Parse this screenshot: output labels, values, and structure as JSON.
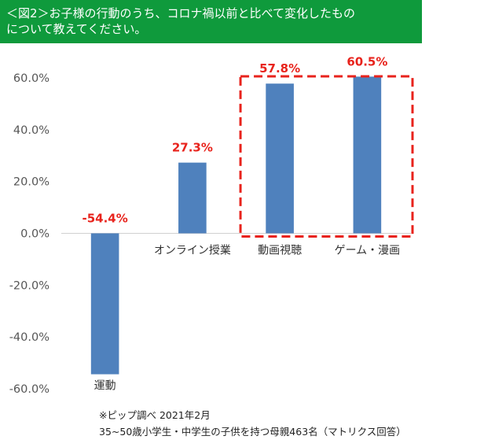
{
  "header": {
    "line1": "＜図2＞お子様の行動のうち、コロナ禍以前と比べて変化したもの",
    "line2": "について教えてください。"
  },
  "chart_data": {
    "type": "bar",
    "categories": [
      "運動",
      "オンライン授業",
      "動画視聴",
      "ゲーム・漫画"
    ],
    "values": [
      -54.4,
      27.3,
      57.8,
      60.5
    ],
    "data_labels": [
      "-54.4%",
      "27.3%",
      "57.8%",
      "60.5%"
    ],
    "y_tick_labels": [
      "60.0%",
      "40.0%",
      "20.0%",
      "0.0%",
      "-20.0%",
      "-40.0%",
      "-60.0%"
    ],
    "y_ticks": [
      60,
      40,
      20,
      0,
      -20,
      -40,
      -60
    ],
    "ylim": [
      -60,
      60
    ],
    "bar_color": "#4f81bd",
    "label_color": "#e8231c",
    "highlight_box_color": "#e8231c",
    "highlighted_categories": [
      "動画視聴",
      "ゲーム・漫画"
    ],
    "grid": false
  },
  "footnote": {
    "line1": "※ピップ調べ 2021年2月",
    "line2": "35~50歳小学生・中学生の子供を持つ母親463名（マトリクス回答）"
  }
}
